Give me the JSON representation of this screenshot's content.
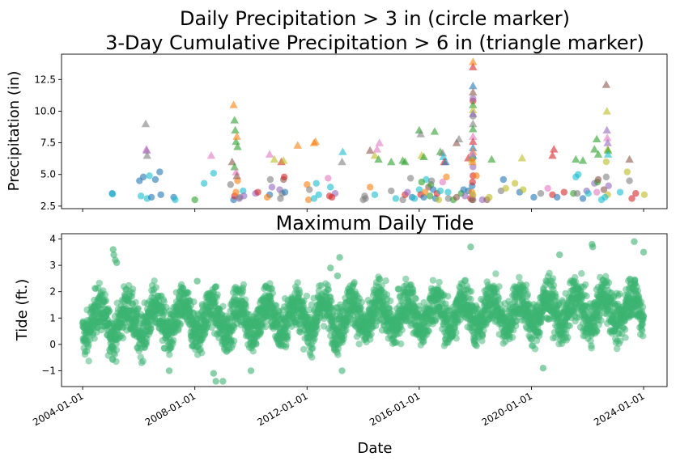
{
  "chart_data": [
    {
      "type": "scatter",
      "title_line1": "Daily Precipitation > 3 in (circle marker)",
      "title_line2": "3-Day Cumulative Precipitation > 6 in (triangle marker)",
      "xlabel": "",
      "ylabel": "Precipitation (in)",
      "yticks": [
        2.5,
        5.0,
        7.5,
        10.0,
        12.5
      ],
      "ytick_labels": [
        "2.5",
        "5.0",
        "7.5",
        "10.0",
        "12.5"
      ],
      "ylim": [
        2.3,
        14.5
      ],
      "xlim": [
        "2003-04-01",
        "2024-11-01"
      ],
      "colors": [
        "#1f77b4",
        "#ff7f0e",
        "#2ca02c",
        "#d62728",
        "#9467bd",
        "#8c564b",
        "#e377c2",
        "#7f7f7f",
        "#bcbd22",
        "#17becf"
      ],
      "circles": [
        [
          "2005-01-20",
          3.5,
          0
        ],
        [
          "2005-01-25",
          3.45,
          9
        ],
        [
          "2006-01-10",
          4.5,
          0
        ],
        [
          "2006-03-01",
          4.8,
          0
        ],
        [
          "2006-04-20",
          3.1,
          9
        ],
        [
          "2006-06-15",
          3.2,
          0
        ],
        [
          "2006-05-20",
          4.9,
          9
        ],
        [
          "2006-10-01",
          5.2,
          0
        ],
        [
          "2006-10-15",
          3.4,
          0
        ],
        [
          "2006-08-05",
          4.6,
          0
        ],
        [
          "2006-01-30",
          3.3,
          9
        ],
        [
          "2007-04-01",
          3.2,
          0
        ],
        [
          "2007-04-20",
          3.0,
          9
        ],
        [
          "2008-05-01",
          4.3,
          9
        ],
        [
          "2008-09-01",
          5.1,
          9
        ],
        [
          "2008-01-01",
          3.0,
          2
        ],
        [
          "2009-04-10",
          4.2,
          7
        ],
        [
          "2009-05-20",
          3.0,
          0
        ],
        [
          "2009-06-01",
          3.3,
          3
        ],
        [
          "2009-06-20",
          3.6,
          1
        ],
        [
          "2009-07-10",
          4.5,
          1
        ],
        [
          "2009-08-01",
          3.1,
          4
        ],
        [
          "2009-08-10",
          3.2,
          7
        ],
        [
          "2009-09-20",
          3.7,
          9
        ],
        [
          "2010-03-01",
          3.5,
          4
        ],
        [
          "2010-04-01",
          3.6,
          3
        ],
        [
          "2010-09-10",
          4.6,
          7
        ],
        [
          "2010-09-01",
          3.4,
          0
        ],
        [
          "2011-01-10",
          3.8,
          4
        ],
        [
          "2011-03-01",
          4.6,
          5
        ],
        [
          "2011-01-20",
          3.1,
          7
        ],
        [
          "2011-03-10",
          4.8,
          3
        ],
        [
          "2011-02-10",
          3.5,
          7
        ],
        [
          "2012-01-01",
          4.2,
          1
        ],
        [
          "2012-01-20",
          3.0,
          1
        ],
        [
          "2012-02-01",
          3.8,
          7
        ],
        [
          "2011-03-20",
          3.6,
          0
        ],
        [
          "2012-04-01",
          3.1,
          9
        ],
        [
          "2012-05-01",
          4.3,
          9
        ],
        [
          "2012-06-01",
          3.4,
          9
        ],
        [
          "2012-10-20",
          3.3,
          3
        ],
        [
          "2012-10-01",
          4.7,
          6
        ],
        [
          "2012-11-01",
          4.0,
          9
        ],
        [
          "2013-01-01",
          3.5,
          4
        ],
        [
          "2012-11-20",
          3.2,
          3
        ],
        [
          "2014-01-20",
          3.3,
          7
        ],
        [
          "2014-02-01",
          3.1,
          7
        ],
        [
          "2014-04-01",
          4.0,
          1
        ],
        [
          "2014-06-01",
          3.4,
          9
        ],
        [
          "2014-01-01",
          3.0,
          7
        ],
        [
          "2015-01-01",
          3.7,
          7
        ],
        [
          "2015-03-01",
          3.1,
          9
        ],
        [
          "2015-06-01",
          3.0,
          7
        ],
        [
          "2015-07-01",
          3.4,
          3
        ],
        [
          "2015-08-01",
          3.6,
          4
        ],
        [
          "2015-09-10",
          4.7,
          7
        ],
        [
          "2015-10-01",
          3.2,
          0
        ],
        [
          "2015-11-01",
          3.1,
          9
        ],
        [
          "2016-01-01",
          3.8,
          9
        ],
        [
          "2016-01-20",
          3.4,
          3
        ],
        [
          "2016-03-01",
          3.2,
          0
        ],
        [
          "2016-04-01",
          4.6,
          9
        ],
        [
          "2016-05-01",
          4.0,
          5
        ],
        [
          "2016-02-01",
          4.4,
          2
        ],
        [
          "2016-03-15",
          3.6,
          1
        ],
        [
          "2016-05-20",
          3.3,
          2
        ],
        [
          "2016-06-01",
          4.2,
          2
        ],
        [
          "2016-07-01",
          3.8,
          0
        ],
        [
          "2016-06-10",
          4.5,
          7
        ],
        [
          "2016-08-01",
          3.1,
          0
        ],
        [
          "2016-08-20",
          3.5,
          3
        ],
        [
          "2016-09-10",
          3.0,
          8
        ],
        [
          "2016-10-01",
          3.7,
          9
        ],
        [
          "2016-11-01",
          4.4,
          6
        ],
        [
          "2016-12-20",
          4.8,
          1
        ],
        [
          "2017-01-10",
          3.6,
          9
        ],
        [
          "2017-01-15",
          3.1,
          7
        ],
        [
          "2017-03-20",
          3.0,
          2
        ],
        [
          "2017-05-01",
          3.2,
          5
        ],
        [
          "2017-07-01",
          3.5,
          2
        ],
        [
          "2017-08-01",
          3.8,
          0
        ],
        [
          "2017-08-20",
          3.3,
          4
        ],
        [
          "2017-10-01",
          3.7,
          0
        ],
        [
          "2017-11-01",
          3.1,
          3
        ],
        [
          "2017-12-01",
          4.9,
          3
        ],
        [
          "2017-12-01",
          5.6,
          4
        ],
        [
          "2017-12-01",
          3.0,
          7
        ],
        [
          "2017-11-15",
          3.6,
          1
        ],
        [
          "2017-11-20",
          4.1,
          0
        ],
        [
          "2017-11-25",
          4.4,
          3
        ],
        [
          "2017-11-25",
          3.3,
          6
        ],
        [
          "2017-12-01",
          6.3,
          3
        ],
        [
          "2017-12-01",
          10.8,
          3
        ],
        [
          "2017-12-01",
          11.0,
          4
        ],
        [
          "2017-12-01",
          9.6,
          7
        ],
        [
          "2017-11-20",
          3.0,
          5
        ],
        [
          "2017-12-01",
          3.4,
          8
        ],
        [
          "2018-01-15",
          4.9,
          1
        ],
        [
          "2018-04-01",
          3.0,
          4
        ],
        [
          "2018-06-01",
          3.0,
          5
        ],
        [
          "2018-07-01",
          3.2,
          8
        ],
        [
          "2018-12-01",
          3.7,
          7
        ],
        [
          "2019-01-01",
          4.6,
          0
        ],
        [
          "2019-02-01",
          3.9,
          8
        ],
        [
          "2019-06-01",
          4.3,
          8
        ],
        [
          "2019-08-01",
          3.6,
          0
        ],
        [
          "2019-09-15",
          3.8,
          8
        ],
        [
          "2020-02-01",
          3.2,
          0
        ],
        [
          "2020-05-01",
          3.5,
          7
        ],
        [
          "2020-08-01",
          3.9,
          6
        ],
        [
          "2020-10-01",
          3.4,
          3
        ],
        [
          "2020-12-01",
          3.2,
          0
        ],
        [
          "2021-03-01",
          3.6,
          3
        ],
        [
          "2021-07-01",
          3.5,
          2
        ],
        [
          "2021-08-01",
          4.8,
          9
        ],
        [
          "2021-08-20",
          3.5,
          7
        ],
        [
          "2021-09-01",
          5.0,
          9
        ],
        [
          "2021-11-01",
          3.1,
          0
        ],
        [
          "2021-12-20",
          3.7,
          4
        ],
        [
          "2022-01-10",
          3.5,
          9
        ],
        [
          "2022-04-01",
          4.3,
          4
        ],
        [
          "2022-05-01",
          3.6,
          6
        ],
        [
          "2022-05-10",
          4.4,
          2
        ],
        [
          "2022-05-20",
          4.6,
          5
        ],
        [
          "2022-07-01",
          3.0,
          9
        ],
        [
          "2022-08-01",
          3.8,
          5
        ],
        [
          "2022-09-01",
          4.8,
          7
        ],
        [
          "2022-09-01",
          6.0,
          8
        ],
        [
          "2022-10-01",
          4.1,
          4
        ],
        [
          "2022-09-20",
          3.4,
          8
        ],
        [
          "2022-08-15",
          3.2,
          9
        ],
        [
          "2023-03-01",
          3.6,
          9
        ],
        [
          "2023-06-01",
          5.2,
          8
        ],
        [
          "2023-07-01",
          4.5,
          7
        ],
        [
          "2023-08-01",
          3.1,
          3
        ],
        [
          "2023-09-20",
          3.5,
          3
        ],
        [
          "2024-01-10",
          3.4,
          8
        ],
        [
          "2010-08-01",
          3.2,
          1
        ],
        [
          "2010-10-01",
          4.0,
          4
        ],
        [
          "2009-10-01",
          3.3,
          4
        ]
      ],
      "triangles": [
        [
          "2006-04-01",
          9.0,
          7
        ],
        [
          "2006-04-10",
          7.0,
          6
        ],
        [
          "2006-04-15",
          6.9,
          4
        ],
        [
          "2006-04-20",
          6.5,
          7
        ],
        [
          "2008-08-01",
          6.5,
          6
        ],
        [
          "2009-05-20",
          10.5,
          1
        ],
        [
          "2009-06-01",
          9.3,
          2
        ],
        [
          "2009-06-10",
          8.5,
          2
        ],
        [
          "2009-06-20",
          7.6,
          2
        ],
        [
          "2009-07-01",
          8.0,
          1
        ],
        [
          "2009-07-10",
          7.2,
          2
        ],
        [
          "2009-05-01",
          6.0,
          5
        ],
        [
          "2009-06-01",
          5.6,
          2
        ],
        [
          "2009-06-20",
          5.2,
          6
        ],
        [
          "2009-07-01",
          4.9,
          5
        ],
        [
          "2010-09-01",
          6.6,
          6
        ],
        [
          "2010-11-01",
          6.2,
          8
        ],
        [
          "2011-02-01",
          6.0,
          3
        ],
        [
          "2011-03-01",
          6.1,
          8
        ],
        [
          "2011-09-01",
          7.3,
          1
        ],
        [
          "2012-04-01",
          7.5,
          1
        ],
        [
          "2012-04-20",
          7.6,
          1
        ],
        [
          "2013-04-01",
          6.0,
          7
        ],
        [
          "2014-04-01",
          6.9,
          5
        ],
        [
          "2014-06-01",
          6.5,
          8
        ],
        [
          "2014-07-01",
          7.0,
          6
        ],
        [
          "2014-08-01",
          7.5,
          6
        ],
        [
          "2014-07-20",
          6.2,
          2
        ],
        [
          "2015-06-01",
          6.1,
          2
        ],
        [
          "2015-07-01",
          6.0,
          2
        ],
        [
          "2016-01-01",
          8.5,
          2
        ],
        [
          "2016-01-20",
          8.2,
          7
        ],
        [
          "2016-02-01",
          6.5,
          8
        ],
        [
          "2016-03-01",
          6.4,
          2
        ],
        [
          "2016-07-20",
          8.4,
          2
        ],
        [
          "2016-10-01",
          6.8,
          2
        ],
        [
          "2016-11-01",
          6.7,
          7
        ],
        [
          "2016-11-10",
          6.4,
          9
        ],
        [
          "2016-11-20",
          6.0,
          3
        ],
        [
          "2016-12-10",
          6.0,
          0
        ],
        [
          "2017-05-01",
          7.5,
          5
        ],
        [
          "2017-06-01",
          7.8,
          7
        ],
        [
          "2017-10-01",
          6.3,
          3
        ],
        [
          "2017-12-01",
          13.9,
          1
        ],
        [
          "2017-12-01",
          13.5,
          3
        ],
        [
          "2017-12-01",
          12.0,
          0
        ],
        [
          "2017-12-01",
          11.5,
          5
        ],
        [
          "2017-12-01",
          10.5,
          2
        ],
        [
          "2017-12-01",
          10.1,
          8
        ],
        [
          "2017-12-01",
          9.8,
          4
        ],
        [
          "2017-12-01",
          9.0,
          7
        ],
        [
          "2017-12-01",
          8.6,
          2
        ],
        [
          "2017-12-01",
          8.0,
          6
        ],
        [
          "2017-12-01",
          7.6,
          3
        ],
        [
          "2017-12-01",
          7.1,
          0
        ],
        [
          "2017-12-01",
          6.8,
          1
        ],
        [
          "2017-12-01",
          6.5,
          9
        ],
        [
          "2017-11-20",
          6.2,
          8
        ],
        [
          "2017-11-25",
          6.0,
          1
        ],
        [
          "2017-11-20",
          6.7,
          6
        ],
        [
          "2018-08-01",
          6.2,
          2
        ],
        [
          "2019-09-01",
          6.3,
          8
        ],
        [
          "2020-10-01",
          6.5,
          3
        ],
        [
          "2020-10-20",
          7.0,
          3
        ],
        [
          "2021-08-01",
          6.2,
          2
        ],
        [
          "2021-11-01",
          6.1,
          2
        ],
        [
          "2022-04-01",
          7.0,
          2
        ],
        [
          "2022-05-01",
          7.8,
          2
        ],
        [
          "2022-09-01",
          12.1,
          5
        ],
        [
          "2022-09-10",
          10.0,
          8
        ],
        [
          "2022-09-10",
          8.5,
          4
        ],
        [
          "2022-09-15",
          7.9,
          6
        ],
        [
          "2022-09-20",
          7.5,
          4
        ],
        [
          "2022-09-20",
          7.0,
          8
        ],
        [
          "2022-09-25",
          6.9,
          2
        ],
        [
          "2022-09-25",
          6.6,
          9
        ],
        [
          "2023-07-01",
          6.2,
          5
        ],
        [
          "2022-05-20",
          6.6,
          2
        ],
        [
          "2015-01-01",
          6.0,
          2
        ],
        [
          "2013-04-10",
          6.8,
          9
        ]
      ]
    },
    {
      "type": "scatter",
      "title": "Maximum Daily Tide",
      "xlabel": "Date",
      "ylabel": "Tide (ft.)",
      "color": "#3cb371",
      "yticks": [
        -1,
        0,
        1,
        2,
        3,
        4
      ],
      "ytick_labels": [
        "−1",
        "0",
        "1",
        "2",
        "3",
        "4"
      ],
      "ylim": [
        -1.6,
        4.2
      ],
      "xlim": [
        "2003-04-01",
        "2024-11-01"
      ],
      "xticks": [
        "2004-01-01",
        "2008-01-01",
        "2012-01-01",
        "2016-01-01",
        "2020-01-01",
        "2024-01-01"
      ],
      "xtick_labels": [
        "2004-01-01",
        "2008-01-01",
        "2012-01-01",
        "2016-01-01",
        "2020-01-01",
        "2024-01-01"
      ],
      "start": "2004-01-01",
      "end": "2023-12-31",
      "seasonal_mean_ft": 0.85,
      "seasonal_amplitude_ft": 0.55,
      "yearly_trend_ft": 0.025,
      "notable_points": [
        [
          "2005-02-01",
          3.6
        ],
        [
          "2005-02-10",
          3.4
        ],
        [
          "2005-03-01",
          3.2
        ],
        [
          "2005-03-20",
          3.1
        ],
        [
          "2008-02-01",
          2.4
        ],
        [
          "2012-11-01",
          2.9
        ],
        [
          "2013-02-01",
          2.6
        ],
        [
          "2013-03-01",
          3.3
        ],
        [
          "2015-04-01",
          2.1
        ],
        [
          "2017-11-01",
          3.7
        ],
        [
          "2021-01-01",
          3.4
        ],
        [
          "2022-03-01",
          3.8
        ],
        [
          "2022-03-10",
          3.7
        ],
        [
          "2023-09-01",
          3.9
        ],
        [
          "2024-01-01",
          3.5
        ],
        [
          "2008-09-01",
          -1.1
        ],
        [
          "2008-10-01",
          -1.4
        ],
        [
          "2009-01-01",
          -1.4
        ],
        [
          "2010-01-01",
          -1.0
        ],
        [
          "2007-02-01",
          -1.0
        ],
        [
          "2013-04-01",
          -1.0
        ],
        [
          "2020-06-01",
          -0.9
        ]
      ]
    }
  ]
}
